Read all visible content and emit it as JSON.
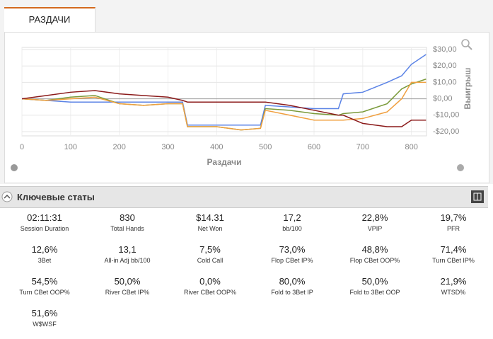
{
  "tab": "РАЗДАЧИ",
  "chart_data": {
    "type": "line",
    "x_label": "Раздачи",
    "y_label": "Выигрыш",
    "x": [
      0,
      50,
      100,
      150,
      200,
      250,
      300,
      330,
      340,
      400,
      450,
      490,
      500,
      550,
      600,
      650,
      660,
      700,
      750,
      780,
      800,
      830
    ],
    "series": [
      {
        "color": "#5b83e6",
        "values": [
          0,
          -1,
          -2,
          -2,
          -2,
          -2,
          -2,
          -2,
          -16,
          -16,
          -16,
          -16,
          -4,
          -5,
          -6,
          -6,
          3,
          4,
          10,
          14,
          21,
          27
        ]
      },
      {
        "color": "#7a9a3a",
        "values": [
          0,
          -1,
          1,
          2,
          -3,
          -4,
          -3,
          -3,
          -17,
          -17,
          -19,
          -18,
          -6,
          -7,
          -9,
          -10,
          -9,
          -8,
          -3,
          6,
          9,
          12
        ]
      },
      {
        "color": "#f0a040",
        "values": [
          0,
          -1,
          0,
          1,
          -3,
          -4,
          -3,
          -3,
          -17,
          -17,
          -19,
          -18,
          -7,
          -10,
          -13,
          -13,
          -13,
          -12,
          -8,
          0,
          10,
          10
        ]
      },
      {
        "color": "#8b1a1a",
        "values": [
          0,
          2,
          4,
          5,
          3,
          2,
          1,
          -1,
          -2,
          -2,
          -2,
          -2,
          -2,
          -4,
          -7,
          -10,
          -10,
          -15,
          -17,
          -17,
          -13,
          -13
        ]
      }
    ],
    "xlim": [
      0,
      831
    ],
    "xticks": [
      0,
      100,
      200,
      300,
      400,
      500,
      600,
      700,
      800
    ],
    "ylim": [
      -22.6,
      31.3
    ],
    "yticks": [
      {
        "value": -20,
        "label": "-$20,00"
      },
      {
        "value": -10,
        "label": "-$10,00"
      },
      {
        "value": 0,
        "label": "$0,00"
      },
      {
        "value": 10,
        "label": "$10,00"
      },
      {
        "value": 20,
        "label": "$20,00"
      },
      {
        "value": 30,
        "label": "$30,00"
      }
    ],
    "grid": true
  },
  "stats_title": "Ключевые статы",
  "stats": [
    {
      "value": "02:11:31",
      "label": "Session Duration"
    },
    {
      "value": "830",
      "label": "Total Hands"
    },
    {
      "value": "$14.31",
      "label": "Net Won"
    },
    {
      "value": "17,2",
      "label": "bb/100"
    },
    {
      "value": "22,8%",
      "label": "VPIP"
    },
    {
      "value": "19,7%",
      "label": "PFR"
    },
    {
      "value": "12,6%",
      "label": "3Bet"
    },
    {
      "value": "13,1",
      "label": "All-in Adj bb/100"
    },
    {
      "value": "7,5%",
      "label": "Cold Call"
    },
    {
      "value": "73,0%",
      "label": "Flop CBet IP%"
    },
    {
      "value": "48,8%",
      "label": "Flop CBet OOP%"
    },
    {
      "value": "71,4%",
      "label": "Turn CBet IP%"
    },
    {
      "value": "54,5%",
      "label": "Turn CBet OOP%"
    },
    {
      "value": "50,0%",
      "label": "River CBet IP%"
    },
    {
      "value": "0,0%",
      "label": "River CBet OOP%"
    },
    {
      "value": "80,0%",
      "label": "Fold to 3Bet IP"
    },
    {
      "value": "50,0%",
      "label": "Fold to 3Bet OOP"
    },
    {
      "value": "21,9%",
      "label": "WTSD%"
    },
    {
      "value": "51,6%",
      "label": "W$WSF"
    }
  ]
}
